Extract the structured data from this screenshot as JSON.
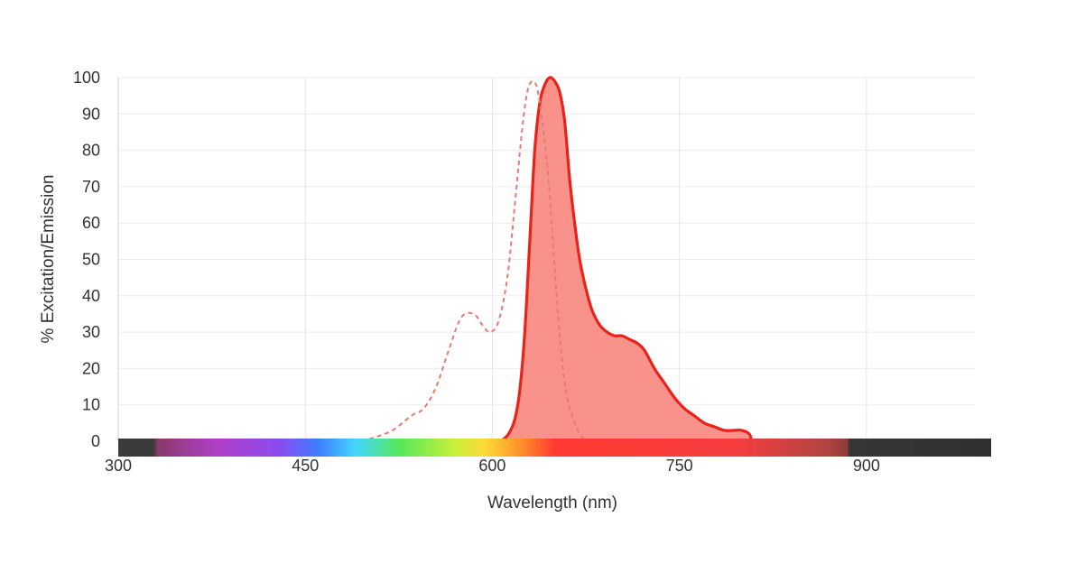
{
  "chart_data": {
    "type": "area",
    "xlabel": "Wavelength (nm)",
    "ylabel": "% Excitation/Emission",
    "xlim": [
      300,
      1000
    ],
    "ylim": [
      0,
      100
    ],
    "x_ticks": [
      "300",
      "450",
      "600",
      "750",
      "900"
    ],
    "y_ticks": [
      "0",
      "10",
      "20",
      "30",
      "40",
      "50",
      "60",
      "70",
      "80",
      "90",
      "100"
    ],
    "grid": true,
    "series": [
      {
        "role": "excitation",
        "style": "dashed",
        "color": "#e87a74",
        "x": [
          495,
          505,
          520,
          535,
          545,
          555,
          565,
          575,
          585,
          592,
          598,
          605,
          612,
          618,
          624,
          628,
          632,
          636,
          640,
          644,
          648,
          652,
          656,
          660,
          665,
          670,
          676
        ],
        "y": [
          0,
          1,
          3,
          7,
          9,
          15,
          25,
          34,
          35,
          32,
          30,
          33,
          45,
          65,
          86,
          96,
          99,
          97,
          88,
          76,
          58,
          38,
          22,
          12,
          6,
          2,
          0
        ]
      },
      {
        "role": "emission",
        "style": "filled",
        "color": "#e8231a",
        "fill": "#fa8c86",
        "x": [
          607,
          613,
          618,
          622,
          626,
          630,
          634,
          638,
          642,
          646,
          650,
          654,
          658,
          662,
          666,
          670,
          675,
          680,
          686,
          692,
          698,
          704,
          710,
          716,
          722,
          730,
          738,
          746,
          754,
          762,
          770,
          778,
          786,
          794,
          800,
          806,
          808
        ],
        "y": [
          0,
          2,
          6,
          14,
          30,
          55,
          80,
          93,
          98,
          100,
          99,
          96,
          88,
          72,
          60,
          50,
          42,
          36,
          32,
          30,
          29,
          29,
          28,
          27,
          25,
          20,
          16,
          12,
          9,
          7,
          5,
          4,
          3,
          3,
          3,
          2,
          0
        ]
      }
    ],
    "spectrum_bar": {
      "x_start": 300,
      "x_end": 1000,
      "stops": [
        {
          "nm": 300,
          "color": "#3a3a3a"
        },
        {
          "nm": 328,
          "color": "#3a3a3a"
        },
        {
          "nm": 332,
          "color": "#8a3a6a"
        },
        {
          "nm": 380,
          "color": "#b040c8"
        },
        {
          "nm": 430,
          "color": "#8a4cf0"
        },
        {
          "nm": 460,
          "color": "#3f7cff"
        },
        {
          "nm": 490,
          "color": "#44d6ff"
        },
        {
          "nm": 525,
          "color": "#55e85a"
        },
        {
          "nm": 570,
          "color": "#c8f03a"
        },
        {
          "nm": 595,
          "color": "#ffd836"
        },
        {
          "nm": 625,
          "color": "#ff8a2a"
        },
        {
          "nm": 650,
          "color": "#ff3a32"
        },
        {
          "nm": 800,
          "color": "#f23e3e"
        },
        {
          "nm": 870,
          "color": "#b04444"
        },
        {
          "nm": 885,
          "color": "#8a3a3a"
        },
        {
          "nm": 886,
          "color": "#363636"
        },
        {
          "nm": 1000,
          "color": "#303030"
        }
      ]
    }
  }
}
